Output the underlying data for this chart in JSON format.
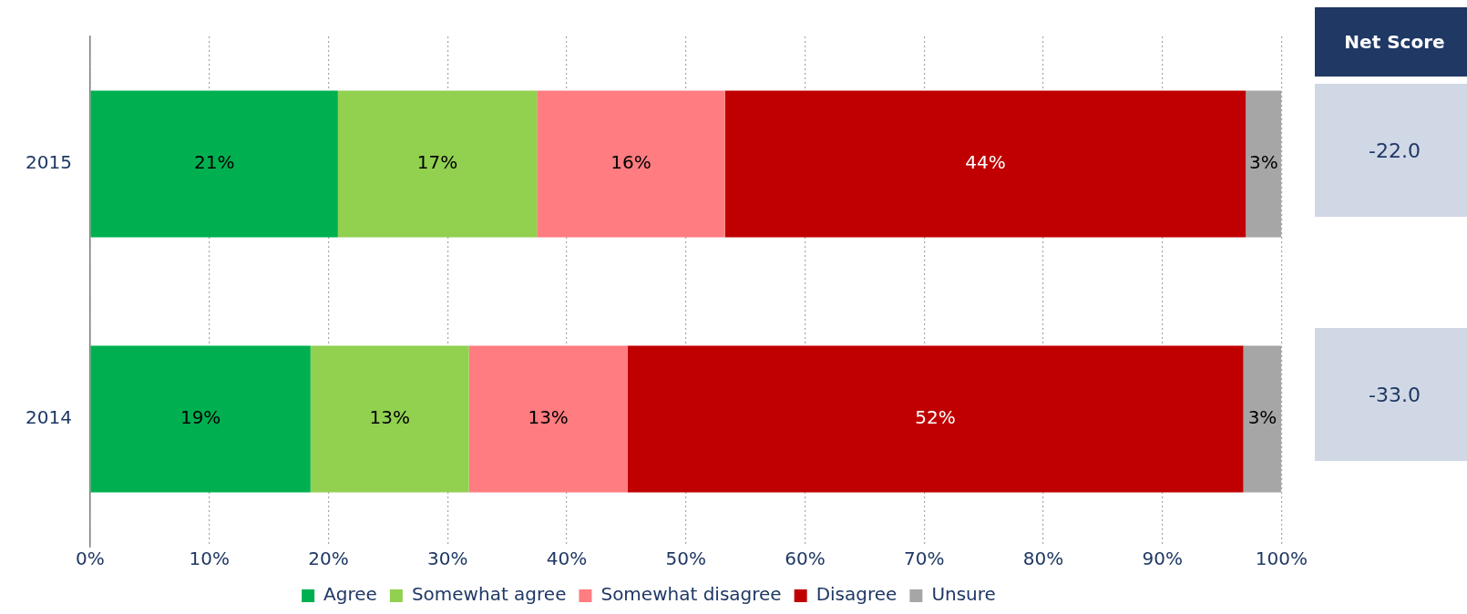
{
  "chart_data": [
    {
      "type": "bar",
      "orientation": "horizontal",
      "stacked": true,
      "categories": [
        "2015",
        "2014"
      ],
      "series": [
        {
          "name": "Agree",
          "color": "#00b050",
          "values": [
            20.8,
            18.5
          ],
          "value_labels": [
            "21%",
            "19%"
          ]
        },
        {
          "name": "Somewhat agree",
          "color": "#92d050",
          "values": [
            16.7,
            13.3
          ],
          "value_labels": [
            "17%",
            "13%"
          ]
        },
        {
          "name": "Somewhat disagree",
          "color": "#ff7c80",
          "values": [
            15.8,
            13.3
          ],
          "value_labels": [
            "16%",
            "13%"
          ]
        },
        {
          "name": "Disagree",
          "color": "#c00000",
          "values": [
            43.7,
            51.7
          ],
          "value_labels": [
            "44%",
            "52%"
          ]
        },
        {
          "name": "Unsure",
          "color": "#a6a6a6",
          "values": [
            3.0,
            3.2
          ],
          "value_labels": [
            "3%",
            "3%"
          ]
        }
      ],
      "xlim": [
        0,
        100
      ],
      "xticks": [
        {
          "value": 0,
          "label": "0%"
        },
        {
          "value": 10,
          "label": "10%"
        },
        {
          "value": 20,
          "label": "20%"
        },
        {
          "value": 30,
          "label": "30%"
        },
        {
          "value": 40,
          "label": "40%"
        },
        {
          "value": 50,
          "label": "50%"
        },
        {
          "value": 60,
          "label": "60%"
        },
        {
          "value": 70,
          "label": "70%"
        },
        {
          "value": 80,
          "label": "80%"
        },
        {
          "value": 90,
          "label": "90%"
        },
        {
          "value": 100,
          "label": "100%"
        }
      ],
      "grid": "x",
      "legend": "bottom"
    },
    {
      "type": "other",
      "title": "Net Score",
      "annotations": [
        "-22.0",
        "-33.0"
      ]
    }
  ]
}
